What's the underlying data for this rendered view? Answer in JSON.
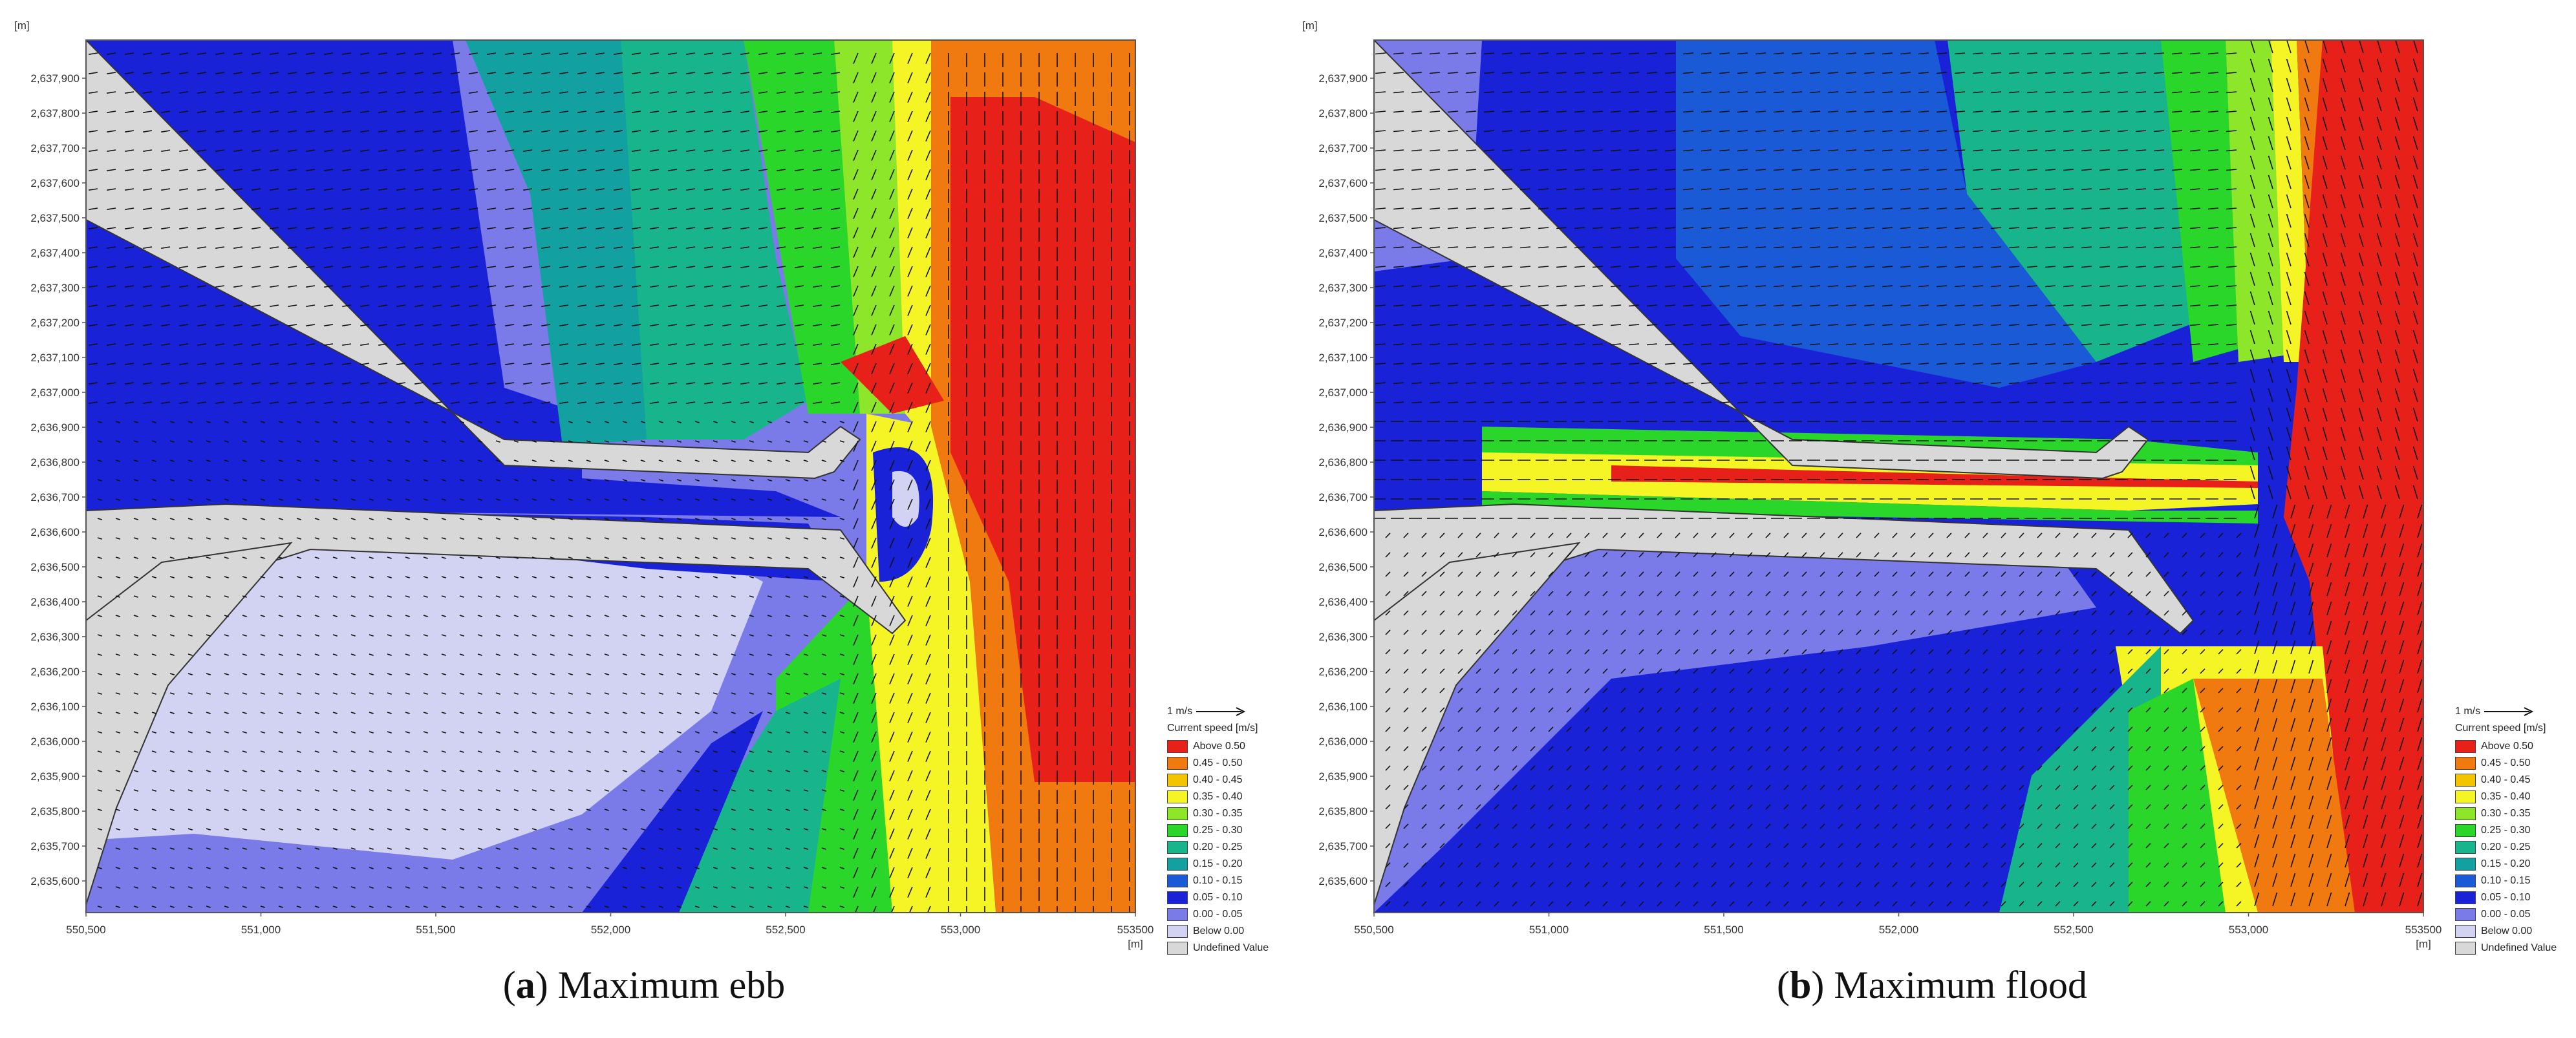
{
  "axis": {
    "unit": "[m]",
    "y_ticks": [
      "2,637,900",
      "2,637,800",
      "2,637,700",
      "2,637,600",
      "2,637,500",
      "2,637,400",
      "2,637,300",
      "2,637,200",
      "2,637,100",
      "2,637,000",
      "2,636,900",
      "2,636,800",
      "2,636,700",
      "2,636,600",
      "2,636,500",
      "2,636,400",
      "2,636,300",
      "2,636,200",
      "2,636,100",
      "2,636,000",
      "2,635,900",
      "2,635,800",
      "2,635,700",
      "2,635,600"
    ],
    "x_ticks": [
      "550,500",
      "551,000",
      "551,500",
      "552,000",
      "552,500",
      "553,000",
      "553500"
    ],
    "x_range": [
      550500,
      553500
    ],
    "y_range": [
      2635530,
      2637980
    ]
  },
  "legend": {
    "scale_label": "1 m/s",
    "title": "Current speed [m/s]",
    "items": [
      {
        "label": "Above 0.50",
        "color": "#e8201a"
      },
      {
        "label": "0.45 - 0.50",
        "color": "#f07a10"
      },
      {
        "label": "0.40 - 0.45",
        "color": "#f5c400"
      },
      {
        "label": "0.35 - 0.40",
        "color": "#f5f526"
      },
      {
        "label": "0.30 - 0.35",
        "color": "#8ee62a"
      },
      {
        "label": "0.25 - 0.30",
        "color": "#2ad62a"
      },
      {
        "label": "0.20 - 0.25",
        "color": "#18b48c"
      },
      {
        "label": "0.15 - 0.20",
        "color": "#12a0a0"
      },
      {
        "label": "0.10 - 0.15",
        "color": "#1a5ad6"
      },
      {
        "label": "0.05 - 0.10",
        "color": "#1a22d8"
      },
      {
        "label": "0.00 - 0.05",
        "color": "#7a7ae8"
      },
      {
        "label": "Below 0.00",
        "color": "#d2d2f2"
      },
      {
        "label": "Undefined Value",
        "color": "#d8d8d8"
      }
    ]
  },
  "panels": [
    {
      "id": "a",
      "letter": "a",
      "caption": " Maximum ebb",
      "flow": "ebb"
    },
    {
      "id": "b",
      "letter": "b",
      "caption": " Maximum flood",
      "flow": "flood"
    }
  ],
  "colors": {
    "land": "#d8d8d8",
    "red": "#e8201a",
    "orange": "#f07a10",
    "yellow": "#f5f526",
    "lime": "#8ee62a",
    "green": "#2ad62a",
    "teal": "#18b48c",
    "cyan": "#12a0a0",
    "blue": "#1a5ad6",
    "deepblue": "#1a22d8",
    "periwinkle": "#7a7ae8",
    "lavender": "#d2d2f2"
  }
}
